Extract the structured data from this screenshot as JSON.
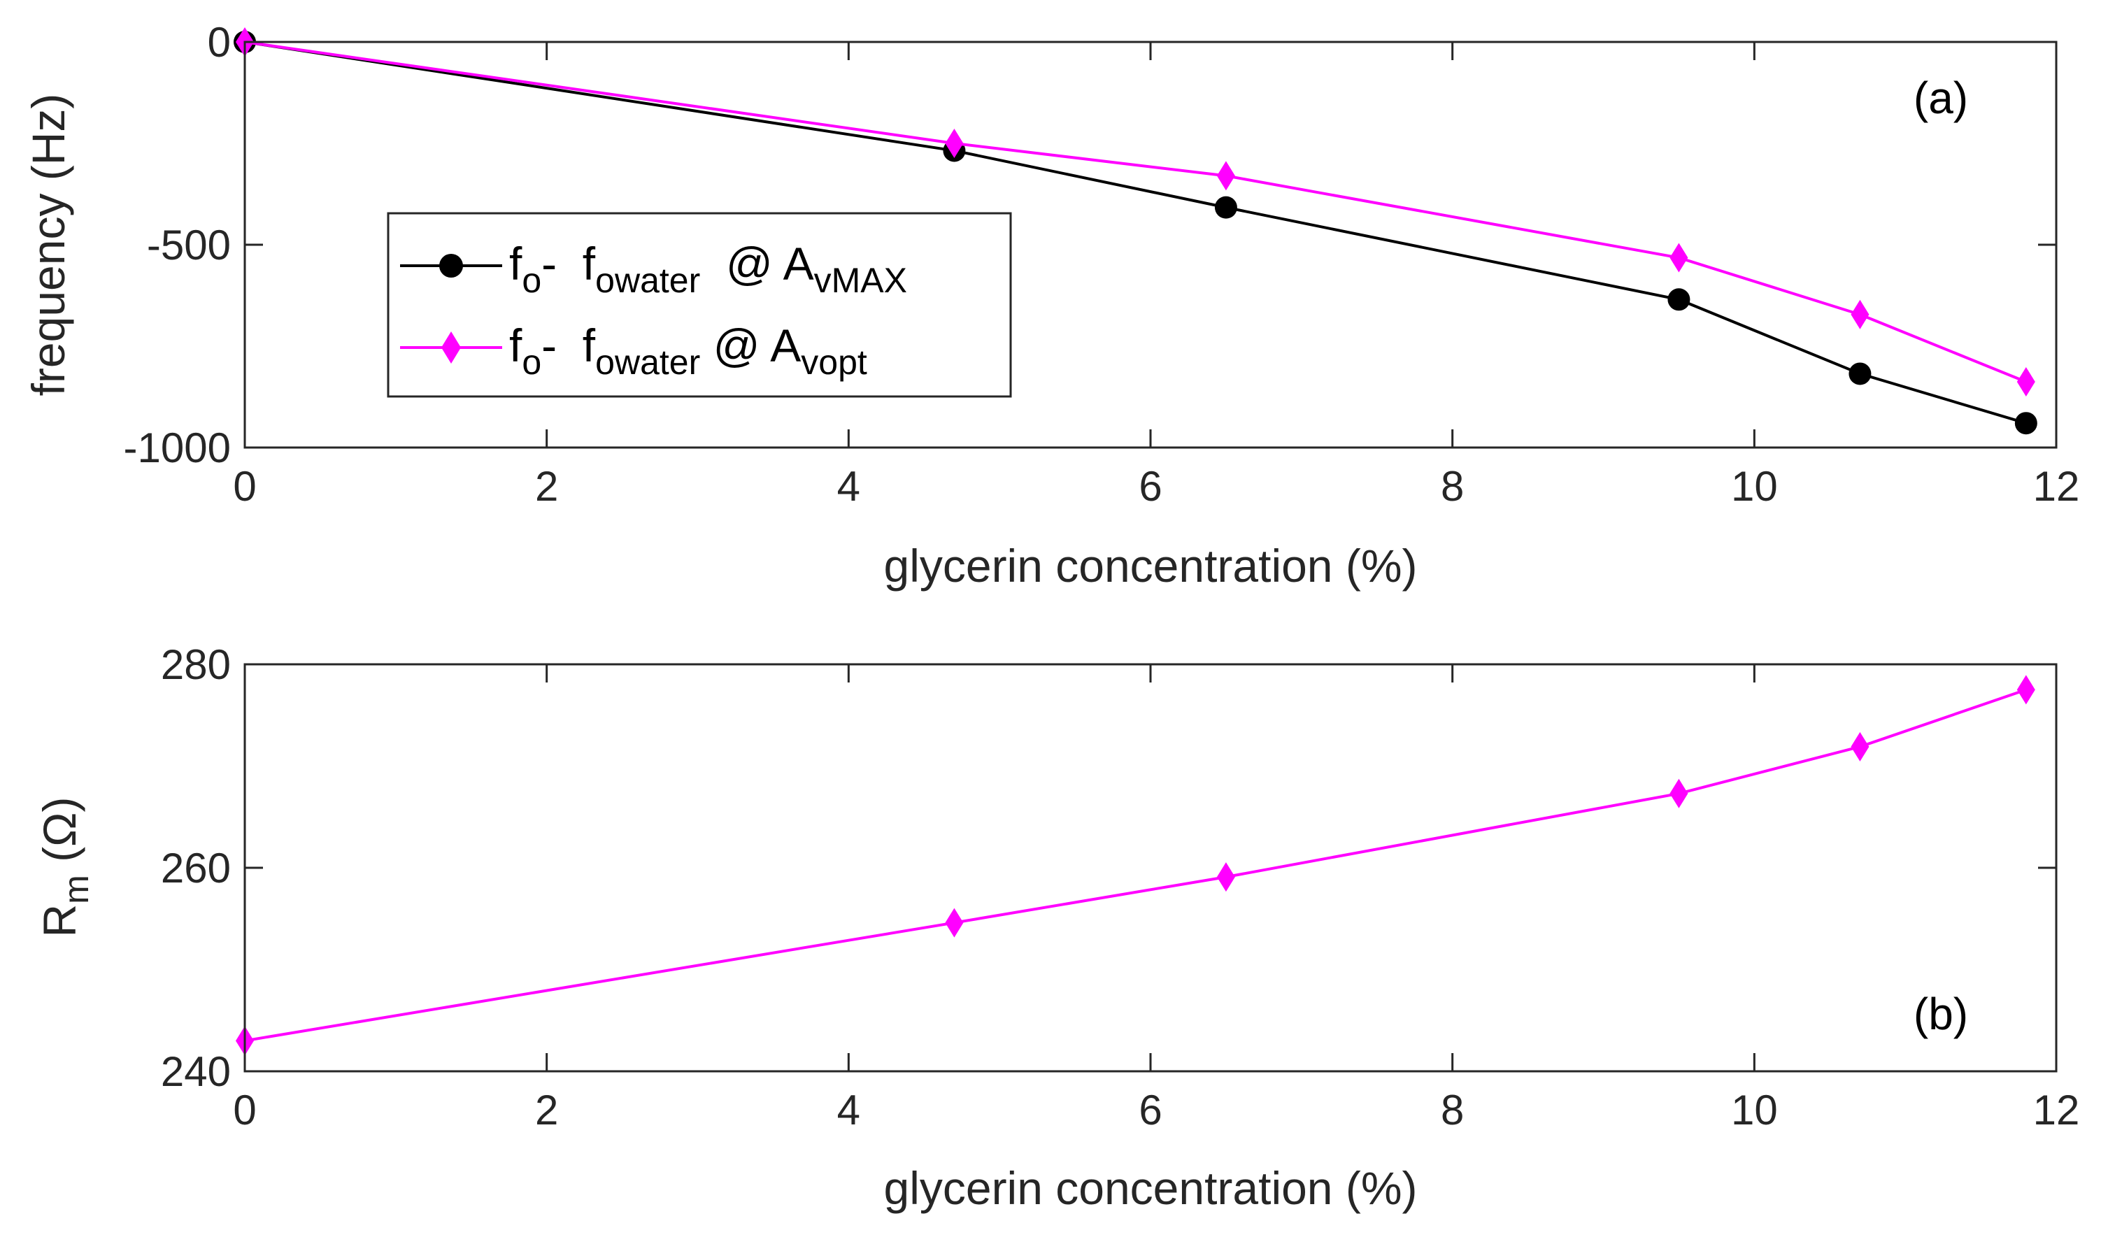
{
  "chart_data": [
    {
      "type": "line",
      "panel_label": "(a)",
      "xlabel": "glycerin concentration (%)",
      "ylabel": "frequency  (Hz)",
      "xlim": [
        0,
        12
      ],
      "ylim": [
        -1000,
        0
      ],
      "xticks": [
        0,
        2,
        4,
        6,
        8,
        10,
        12
      ],
      "yticks": [
        0,
        -500,
        -1000
      ],
      "xtick_labels": [
        "0",
        "2",
        "4",
        "6",
        "8",
        "10",
        "12"
      ],
      "ytick_labels": [
        "0",
        "-500",
        "-1000"
      ],
      "legend_position": "center-left",
      "x": [
        0,
        4.7,
        6.5,
        9.5,
        10.7,
        11.8
      ],
      "series": [
        {
          "name": "f_o- f_owater @ A_vMAX",
          "legend_main": "f",
          "legend_sub1": "o",
          "legend_mid": "-  f",
          "legend_sub2": "owater",
          "legend_at": "  @ A",
          "legend_sub3": "vMAX",
          "color": "#000000",
          "marker": "circle",
          "values": [
            0,
            -268,
            -408,
            -635,
            -818,
            -940
          ]
        },
        {
          "name": "f_o- f_owater @ A_vopt",
          "legend_main": "f",
          "legend_sub1": "o",
          "legend_mid": "-  f",
          "legend_sub2": "owater",
          "legend_at": " @ A",
          "legend_sub3": "vopt",
          "color": "#ff00ff",
          "marker": "diamond",
          "values": [
            0,
            -250,
            -330,
            -532,
            -672,
            -838
          ]
        }
      ]
    },
    {
      "type": "line",
      "panel_label": "(b)",
      "xlabel": "glycerin concentration (%)",
      "ylabel_main": "R",
      "ylabel_sub": "m",
      "ylabel_unit": " (Ω)",
      "xlim": [
        0,
        12
      ],
      "ylim": [
        240,
        280
      ],
      "xticks": [
        0,
        2,
        4,
        6,
        8,
        10,
        12
      ],
      "yticks": [
        240,
        260,
        280
      ],
      "xtick_labels": [
        "0",
        "2",
        "4",
        "6",
        "8",
        "10",
        "12"
      ],
      "ytick_labels": [
        "240",
        "260",
        "280"
      ],
      "x": [
        0,
        4.7,
        6.5,
        9.5,
        10.7,
        11.8
      ],
      "series": [
        {
          "name": "R_m",
          "color": "#ff00ff",
          "marker": "diamond",
          "values": [
            243,
            254.6,
            259.1,
            267.3,
            271.9,
            277.5
          ]
        }
      ]
    }
  ]
}
